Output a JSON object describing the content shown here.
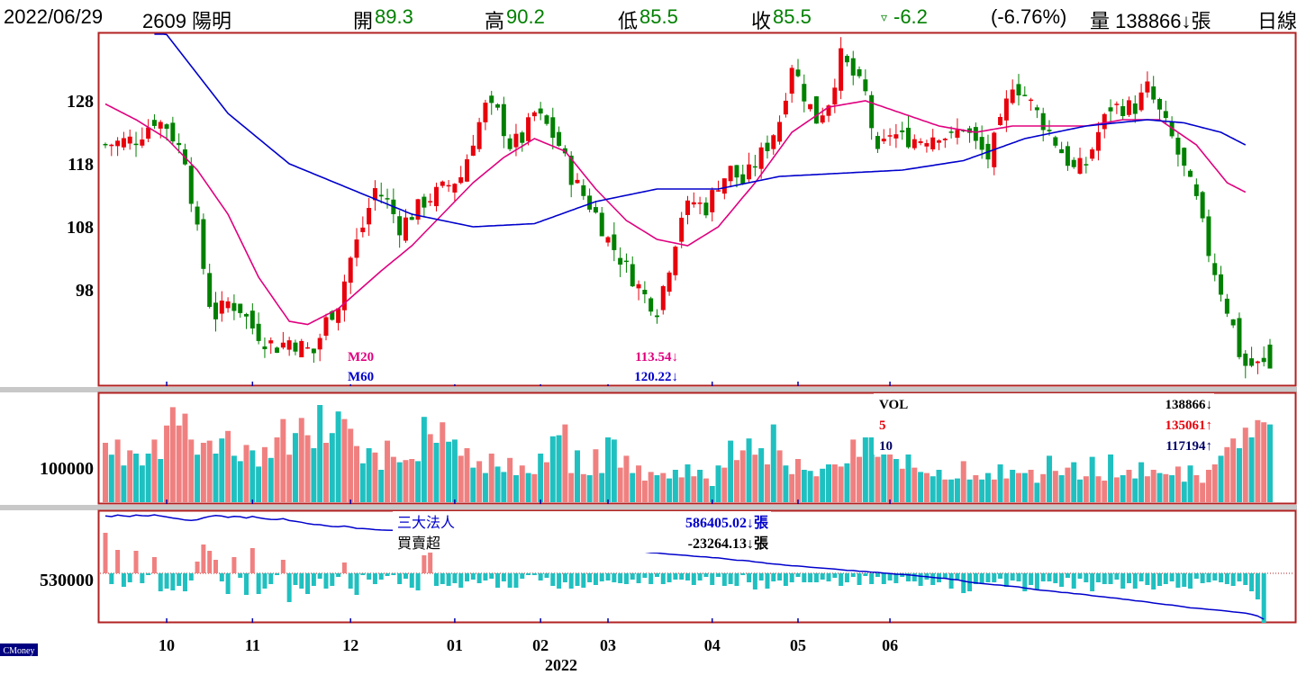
{
  "header": {
    "date": "2022/06/29",
    "stock": "2609 陽明",
    "open_label": "開",
    "open": "89.3",
    "high_label": "高",
    "high": "90.2",
    "low_label": "低",
    "low": "85.5",
    "close_label": "收",
    "close": "85.5",
    "change_arrow": "▿",
    "change": "-6.2",
    "change_pct": "(-6.76%)",
    "volume": "量 138866↓張",
    "period": "日線"
  },
  "legend_price": {
    "m20_label": "M20",
    "m20_value": "113.54↓",
    "m60_label": "M60",
    "m60_value": "120.22↓"
  },
  "legend_volume": {
    "vol_label": "VOL",
    "vol_value": "138866↓",
    "ma5_label": "5",
    "ma5_value": "135061↑",
    "ma10_label": "10",
    "ma10_value": "117194↑"
  },
  "legend_inst": {
    "label": "三大法人",
    "cum_value": "586405.02↓張",
    "net_label": "買賣超",
    "net_value": "-23264.13↓張"
  },
  "watermark": "CMoney",
  "colors": {
    "up_candle": "#e8000b",
    "down_candle": "#008000",
    "ma20": "#e0007f",
    "ma60": "#0000cc",
    "vol_up": "#f08080",
    "vol_down": "#20c0c0",
    "frame": "#b22222",
    "inst_line": "#0000cc"
  },
  "chart_data": [
    {
      "type": "candlestick",
      "title": "2609 陽明",
      "price_ticks": [
        128,
        118,
        108,
        98
      ],
      "ylim": [
        84,
        141
      ],
      "x_month_ticks": [
        "10",
        "11",
        "12",
        "01",
        "02",
        "03",
        "04",
        "05",
        "06"
      ],
      "x_year_label": "2022",
      "last_ohlc": {
        "open": 89.3,
        "high": 90.2,
        "low": 85.5,
        "close": 85.5
      },
      "close_path": [
        [
          0,
          121
        ],
        [
          5,
          122
        ],
        [
          8,
          125
        ],
        [
          10,
          124
        ],
        [
          13,
          119
        ],
        [
          15,
          107
        ],
        [
          17,
          96
        ],
        [
          18,
          94
        ],
        [
          20,
          96
        ],
        [
          22,
          95
        ],
        [
          24,
          92
        ],
        [
          26,
          90
        ],
        [
          28,
          89
        ],
        [
          30,
          90
        ],
        [
          32,
          89
        ],
        [
          34,
          88
        ],
        [
          36,
          93
        ],
        [
          38,
          96
        ],
        [
          40,
          103
        ],
        [
          42,
          108
        ],
        [
          44,
          114
        ],
        [
          46,
          112
        ],
        [
          48,
          108
        ],
        [
          50,
          110
        ],
        [
          52,
          112
        ],
        [
          55,
          114
        ],
        [
          58,
          116
        ],
        [
          60,
          122
        ],
        [
          62,
          127
        ],
        [
          64,
          126
        ],
        [
          66,
          121
        ],
        [
          68,
          122
        ],
        [
          70,
          126
        ],
        [
          72,
          124
        ],
        [
          74,
          121
        ],
        [
          76,
          116
        ],
        [
          78,
          113
        ],
        [
          80,
          110
        ],
        [
          82,
          106
        ],
        [
          84,
          103
        ],
        [
          86,
          100
        ],
        [
          88,
          97
        ],
        [
          90,
          95
        ],
        [
          92,
          102
        ],
        [
          94,
          110
        ],
        [
          96,
          112
        ],
        [
          98,
          111
        ],
        [
          100,
          115
        ],
        [
          102,
          117
        ],
        [
          104,
          115
        ],
        [
          106,
          118
        ],
        [
          108,
          121
        ],
        [
          110,
          125
        ],
        [
          112,
          134
        ],
        [
          114,
          129
        ],
        [
          116,
          125
        ],
        [
          118,
          128
        ],
        [
          120,
          135
        ],
        [
          122,
          132
        ],
        [
          124,
          129
        ],
        [
          126,
          119
        ],
        [
          128,
          123
        ],
        [
          130,
          122
        ],
        [
          133,
          122
        ],
        [
          136,
          123
        ],
        [
          138,
          122
        ],
        [
          140,
          124
        ],
        [
          142,
          121
        ],
        [
          144,
          119
        ],
        [
          146,
          124
        ],
        [
          148,
          131
        ],
        [
          150,
          129
        ],
        [
          152,
          126
        ],
        [
          154,
          123
        ],
        [
          156,
          120
        ],
        [
          158,
          117
        ],
        [
          160,
          118
        ],
        [
          162,
          123
        ],
        [
          164,
          127
        ],
        [
          166,
          127
        ],
        [
          168,
          127
        ],
        [
          170,
          130
        ],
        [
          172,
          126
        ],
        [
          174,
          122
        ],
        [
          176,
          117
        ],
        [
          178,
          112
        ],
        [
          180,
          104
        ],
        [
          182,
          98
        ],
        [
          184,
          92
        ],
        [
          185,
          88
        ],
        [
          186,
          86
        ]
      ],
      "ma20_path": [
        [
          0,
          127.5
        ],
        [
          5,
          125
        ],
        [
          10,
          122
        ],
        [
          15,
          117
        ],
        [
          20,
          110
        ],
        [
          25,
          100
        ],
        [
          30,
          93
        ],
        [
          33,
          92.5
        ],
        [
          38,
          95
        ],
        [
          45,
          101
        ],
        [
          50,
          105
        ],
        [
          55,
          110
        ],
        [
          60,
          115
        ],
        [
          65,
          119
        ],
        [
          70,
          122
        ],
        [
          75,
          120
        ],
        [
          80,
          114
        ],
        [
          85,
          109
        ],
        [
          90,
          106
        ],
        [
          95,
          105
        ],
        [
          100,
          108
        ],
        [
          106,
          115
        ],
        [
          112,
          123
        ],
        [
          118,
          127
        ],
        [
          124,
          128
        ],
        [
          130,
          126
        ],
        [
          136,
          124
        ],
        [
          142,
          123
        ],
        [
          148,
          124
        ],
        [
          154,
          124
        ],
        [
          160,
          124
        ],
        [
          166,
          125
        ],
        [
          172,
          125
        ],
        [
          178,
          121
        ],
        [
          183,
          115
        ],
        [
          186,
          113.5
        ]
      ],
      "ma60_path": [
        [
          8,
          141
        ],
        [
          12,
          136
        ],
        [
          20,
          126
        ],
        [
          30,
          118
        ],
        [
          40,
          114
        ],
        [
          50,
          110
        ],
        [
          60,
          108
        ],
        [
          70,
          108.5
        ],
        [
          80,
          112
        ],
        [
          90,
          114
        ],
        [
          100,
          114
        ],
        [
          110,
          116
        ],
        [
          120,
          116.5
        ],
        [
          130,
          117
        ],
        [
          140,
          118.5
        ],
        [
          150,
          122
        ],
        [
          160,
          124
        ],
        [
          170,
          125
        ],
        [
          176,
          124.5
        ],
        [
          182,
          123
        ],
        [
          186,
          121
        ]
      ]
    },
    {
      "type": "bar",
      "title": "VOL",
      "y_tick": 100000,
      "values": [
        55,
        44,
        58,
        34,
        48,
        45,
        34,
        45,
        58,
        40,
        71,
        88,
        71,
        82,
        58,
        44,
        55,
        57,
        45,
        59,
        66,
        43,
        38,
        53,
        48,
        33,
        51,
        41,
        60,
        77,
        44,
        64,
        78,
        62,
        50,
        90,
        55,
        64,
        84,
        77,
        68,
        52,
        36,
        50,
        46,
        30,
        57,
        42,
        37,
        39,
        40,
        38,
        79,
        63,
        55,
        74,
        56,
        58,
        43,
        50,
        32,
        38,
        27,
        45,
        33,
        28,
        41,
        25,
        34,
        27,
        26,
        45,
        37,
        61,
        62,
        72,
        27,
        48,
        26,
        25,
        49,
        27,
        60,
        58,
        32,
        43,
        27,
        34,
        20,
        28,
        25,
        27,
        22,
        30,
        23,
        35,
        24,
        30,
        22,
        15,
        34,
        32,
        57,
        39,
        48,
        59,
        44,
        50,
        35,
        72,
        48,
        34,
        26,
        40,
        30,
        29,
        24,
        31,
        35,
        35,
        33,
        36,
        58,
        42,
        60,
        60,
        42,
        45,
        52,
        40,
        31,
        48,
        32,
        28,
        27,
        24,
        30,
        21,
        21,
        22,
        38,
        21,
        25,
        21,
        27,
        21,
        35,
        22,
        30,
        27,
        27,
        30,
        18,
        26,
        43,
        29,
        25,
        32,
        37,
        21,
        24,
        42,
        24,
        20,
        45,
        23,
        25,
        30,
        22,
        37,
        24,
        30,
        27,
        26,
        25,
        33,
        19,
        34,
        25,
        18,
        30,
        35,
        43,
        51,
        59,
        50,
        69,
        60,
        76,
        74,
        72
      ],
      "up": [
        1,
        0,
        1,
        0,
        1,
        0,
        0,
        0,
        1,
        0,
        1,
        1,
        1,
        1,
        1,
        0,
        1,
        1,
        0,
        0,
        1,
        0,
        0,
        1,
        0,
        0,
        1,
        0,
        1,
        1,
        1,
        0,
        1,
        1,
        0,
        0,
        1,
        0,
        0,
        1,
        1,
        1,
        0,
        0,
        1,
        0,
        1,
        1,
        0,
        1,
        1,
        0,
        0,
        1,
        0,
        1,
        0,
        0,
        1,
        1,
        0,
        1,
        0,
        1,
        0,
        0,
        1,
        0,
        1,
        0,
        1,
        0,
        1,
        0,
        0,
        1,
        1,
        0,
        1,
        0,
        1,
        0,
        0,
        0,
        1,
        1,
        0,
        1,
        1,
        1,
        0,
        1,
        0,
        0,
        1,
        0,
        1,
        0,
        1,
        0,
        0,
        1,
        0,
        1,
        1,
        0,
        1,
        0,
        1,
        0,
        1,
        0,
        1,
        1,
        0,
        0,
        1,
        0,
        0,
        1,
        1,
        0,
        1,
        1,
        0,
        0,
        1,
        0,
        1,
        0,
        1,
        0,
        1,
        0,
        1,
        0,
        0,
        1,
        0,
        0,
        1,
        0,
        1,
        0,
        0,
        1,
        0,
        1,
        0,
        1,
        0,
        1,
        0,
        1,
        0,
        1,
        0,
        1,
        0,
        0,
        1,
        0,
        1,
        1,
        0,
        1,
        0,
        1,
        0,
        0,
        1,
        1,
        0,
        1,
        0,
        1,
        0,
        0,
        1,
        1,
        1,
        1,
        0,
        1,
        1,
        0,
        1,
        0,
        1,
        1,
        0
      ]
    },
    {
      "type": "bar",
      "title": "三大法人 買賣超",
      "y_tick": 530000,
      "values": [
        45,
        -12,
        26,
        -15,
        -10,
        25,
        -11,
        -2,
        18,
        -20,
        -17,
        -19,
        -14,
        -20,
        -8,
        13,
        32,
        25,
        15,
        -9,
        -23,
        18,
        -5,
        -24,
        28,
        -23,
        -17,
        -12,
        -2,
        15,
        -32,
        -13,
        -17,
        -23,
        -14,
        -6,
        -17,
        -14,
        -4,
        12,
        -17,
        -24,
        -2,
        -7,
        -12,
        -7,
        -3,
        -2,
        -12,
        -6,
        -16,
        -19,
        20,
        30,
        -14,
        -12,
        -14,
        -11,
        -16,
        -9,
        -7,
        -11,
        -8,
        -6,
        -16,
        -9,
        -16,
        -16,
        -6,
        -2,
        -2,
        -8,
        -5,
        -14,
        -17,
        -10,
        -17,
        -14,
        -16,
        -10,
        -13,
        -9,
        -8,
        -10,
        -11,
        -12,
        -7,
        -11,
        -5,
        -12,
        -4,
        -12,
        -10,
        -7,
        -7,
        -8,
        -13,
        -8,
        -4,
        -13,
        -4,
        -14,
        -12,
        -14,
        -2,
        -10,
        -18,
        -8,
        -17,
        -9,
        -8,
        -14,
        -10,
        -4,
        -10,
        -10,
        -10,
        -7,
        -9,
        -5,
        -14,
        -10,
        -4,
        -13,
        -3,
        -12,
        -4,
        -12,
        -8,
        -11,
        -4,
        -9,
        -9,
        -14,
        -7,
        -13,
        -10,
        -6,
        -17,
        -7,
        -22,
        -20,
        -12,
        -12,
        -10,
        -10,
        -6,
        -15,
        -8,
        -9,
        -20,
        -13,
        -18,
        -9,
        -9,
        -11,
        -15,
        -5,
        -17,
        -6,
        -10,
        -20,
        -10,
        -12,
        -12,
        -7,
        -17,
        -11,
        -17,
        -9,
        -13,
        -18,
        -14,
        -12,
        -9,
        -16,
        -15,
        -17,
        -6,
        -11,
        -10,
        -8,
        -10,
        -12,
        -14,
        -9,
        -13,
        -20,
        -29,
        -55
      ]
    }
  ]
}
